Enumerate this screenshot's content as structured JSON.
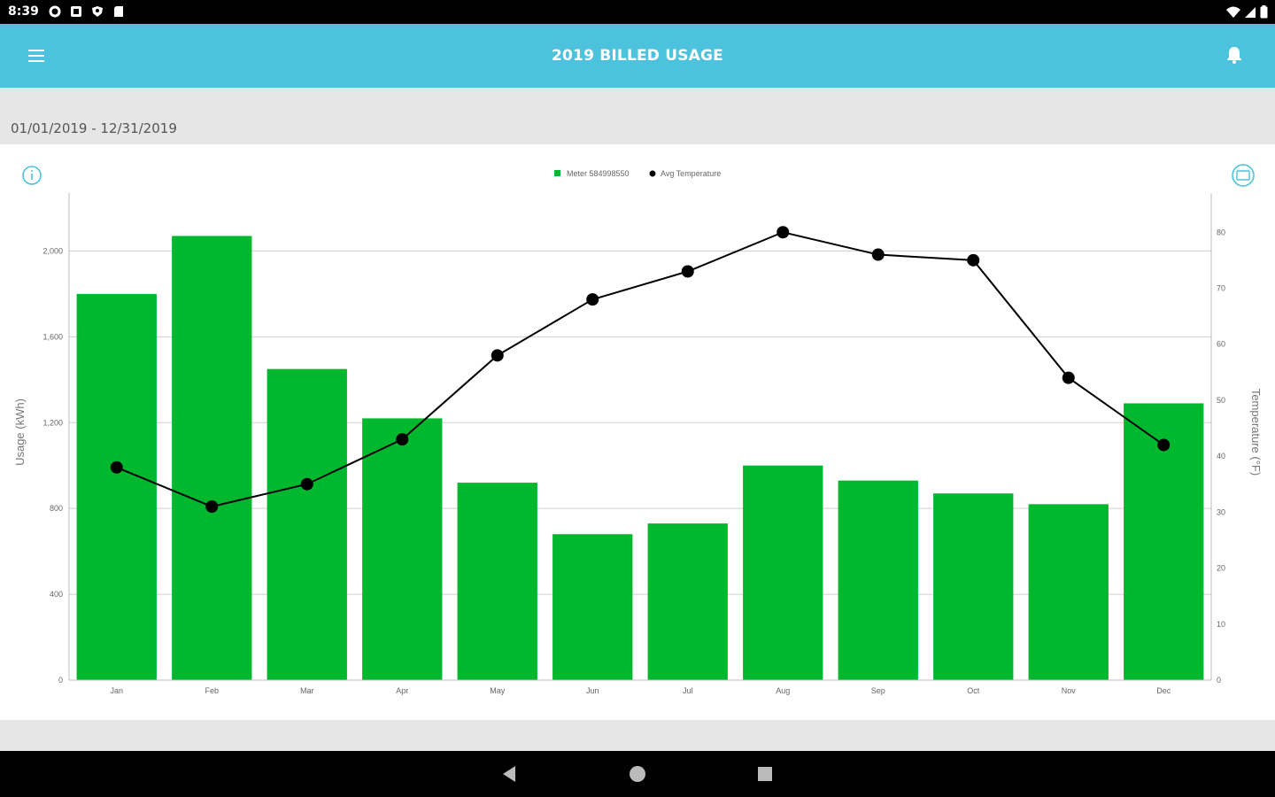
{
  "status_bar": {
    "time": "8:39"
  },
  "app_bar": {
    "title": "2019 BILLED USAGE"
  },
  "date_range": "01/01/2019 - 12/31/2019",
  "colors": {
    "app_bar": "#4cc2dc",
    "usage_bars": "#00b82e",
    "temperature_line": "#000000",
    "icon_accent": "#4cc2dc"
  },
  "icons": {
    "menu": "menu-icon",
    "bell": "bell-icon",
    "info": "info-icon",
    "toggle": "chart-toggle-icon"
  },
  "chart_data": {
    "type": "bar",
    "categories": [
      "Jan",
      "Feb",
      "Mar",
      "Apr",
      "May",
      "Jun",
      "Jul",
      "Aug",
      "Sep",
      "Oct",
      "Nov",
      "Dec"
    ],
    "series": [
      {
        "name": "Meter 584998550",
        "type": "bar",
        "axis": "left",
        "values": [
          1800,
          2070,
          1450,
          1220,
          920,
          680,
          730,
          1000,
          930,
          870,
          820,
          1290
        ]
      },
      {
        "name": "Avg Temperature",
        "type": "line",
        "axis": "right",
        "values": [
          38,
          31,
          35,
          43,
          58,
          68,
          73,
          80,
          76,
          75,
          54,
          42
        ]
      }
    ],
    "ylabel": "Usage (kWh)",
    "y2label": "Temperature (°F)",
    "ylim": [
      0,
      2270
    ],
    "yticks": [
      0,
      400,
      800,
      1200,
      1600,
      2000
    ],
    "ytick_labels": [
      "0",
      "400",
      "800",
      "1,200",
      "1,600",
      "2,000"
    ],
    "y2lim": [
      0,
      87
    ],
    "y2ticks": [
      0,
      10,
      20,
      30,
      40,
      50,
      60,
      70,
      80
    ],
    "grid": true,
    "legend": "top-center"
  }
}
